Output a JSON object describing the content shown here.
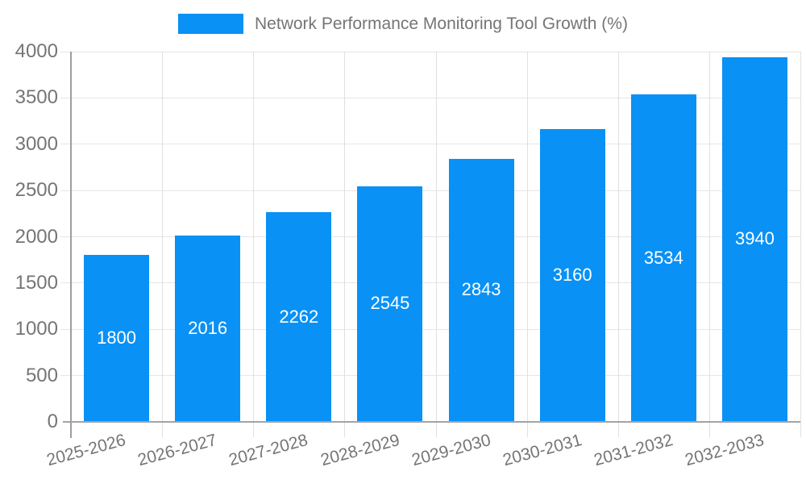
{
  "chart_data": {
    "type": "bar",
    "title": "Network Performance Monitoring Tool Growth (%)",
    "categories": [
      "2025-2026",
      "2026-2027",
      "2027-2028",
      "2028-2029",
      "2029-2030",
      "2030-2031",
      "2031-2032",
      "2032-2033"
    ],
    "values": [
      1800,
      2016,
      2262,
      2545,
      2843,
      3160,
      3534,
      3940
    ],
    "xlabel": "",
    "ylabel": "",
    "ylim": [
      0,
      4000
    ],
    "yticks": [
      0,
      500,
      1000,
      1500,
      2000,
      2500,
      3000,
      3500,
      4000
    ],
    "grid": true,
    "legend_position": "top",
    "bar_color": "#0991f5",
    "bar_label_color": "#ffffff",
    "axis_text_color": "#757575",
    "gridline_color": "#e6e6e6",
    "axis_line_color": "#9e9e9e"
  }
}
